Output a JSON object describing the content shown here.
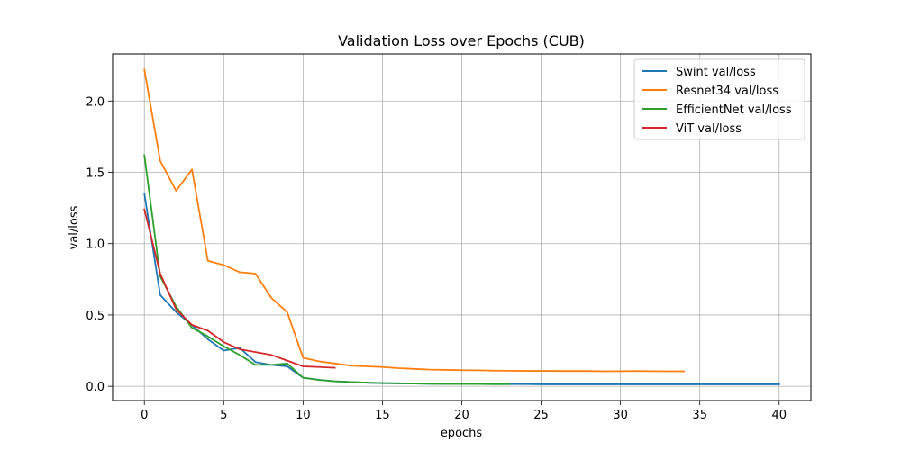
{
  "chart_data": {
    "type": "line",
    "title": "Validation Loss over Epochs (CUB)",
    "xlabel": "epochs",
    "ylabel": "val/loss",
    "xlim": [
      -2,
      42
    ],
    "ylim": [
      -0.1,
      2.33
    ],
    "x_ticks": [
      0,
      5,
      10,
      15,
      20,
      25,
      30,
      35,
      40
    ],
    "x_tick_labels": [
      "0",
      "5",
      "10",
      "15",
      "20",
      "25",
      "30",
      "35",
      "40"
    ],
    "y_ticks": [
      0.0,
      0.5,
      1.0,
      1.5,
      2.0
    ],
    "y_tick_labels": [
      "0.0",
      "0.5",
      "1.0",
      "1.5",
      "2.0"
    ],
    "grid": true,
    "legend_position": "top-right",
    "series": [
      {
        "name": "Swint val/loss",
        "color": "#1f77b4",
        "x": [
          0,
          1,
          2,
          3,
          4,
          5,
          6,
          7,
          8,
          9,
          10,
          11,
          12,
          13,
          14,
          15,
          16,
          17,
          18,
          19,
          20,
          21,
          22,
          23,
          24,
          25,
          26,
          27,
          28,
          29,
          30,
          31,
          32,
          33,
          34,
          35,
          36,
          37,
          38,
          39,
          40
        ],
        "values": [
          1.35,
          0.64,
          0.52,
          0.43,
          0.33,
          0.25,
          0.27,
          0.17,
          0.15,
          0.14,
          0.06,
          0.045,
          0.035,
          0.03,
          0.025,
          0.022,
          0.02,
          0.019,
          0.018,
          0.017,
          0.016,
          0.016,
          0.015,
          0.015,
          0.015,
          0.014,
          0.014,
          0.014,
          0.014,
          0.014,
          0.014,
          0.014,
          0.014,
          0.014,
          0.014,
          0.014,
          0.014,
          0.014,
          0.014,
          0.014,
          0.014
        ]
      },
      {
        "name": "Resnet34 val/loss",
        "color": "#ff7f0e",
        "x": [
          0,
          1,
          2,
          3,
          4,
          5,
          6,
          7,
          8,
          9,
          10,
          11,
          12,
          13,
          14,
          15,
          16,
          17,
          18,
          19,
          20,
          21,
          22,
          23,
          24,
          25,
          26,
          27,
          28,
          29,
          30,
          31,
          32,
          33,
          34
        ],
        "values": [
          2.22,
          1.58,
          1.37,
          1.52,
          0.88,
          0.85,
          0.8,
          0.79,
          0.62,
          0.52,
          0.2,
          0.175,
          0.16,
          0.145,
          0.14,
          0.135,
          0.127,
          0.122,
          0.117,
          0.115,
          0.113,
          0.112,
          0.11,
          0.109,
          0.108,
          0.108,
          0.107,
          0.107,
          0.107,
          0.105,
          0.106,
          0.107,
          0.106,
          0.105,
          0.105
        ]
      },
      {
        "name": "EfficientNet val/loss",
        "color": "#2ca02c",
        "x": [
          0,
          1,
          2,
          3,
          4,
          5,
          6,
          7,
          8,
          9,
          10,
          11,
          12,
          13,
          14,
          15,
          16,
          17,
          18,
          19,
          20,
          21,
          22,
          23
        ],
        "values": [
          1.62,
          0.77,
          0.56,
          0.41,
          0.35,
          0.28,
          0.22,
          0.15,
          0.15,
          0.16,
          0.06,
          0.045,
          0.035,
          0.03,
          0.026,
          0.023,
          0.021,
          0.019,
          0.018,
          0.017,
          0.016,
          0.016,
          0.015,
          0.015
        ]
      },
      {
        "name": "ViT val/loss",
        "color": "#d62728",
        "x": [
          0,
          1,
          2,
          3,
          4,
          5,
          6,
          7,
          8,
          9,
          10,
          11,
          12
        ],
        "values": [
          1.24,
          0.79,
          0.54,
          0.43,
          0.39,
          0.31,
          0.26,
          0.24,
          0.22,
          0.18,
          0.14,
          0.135,
          0.13
        ]
      }
    ]
  }
}
